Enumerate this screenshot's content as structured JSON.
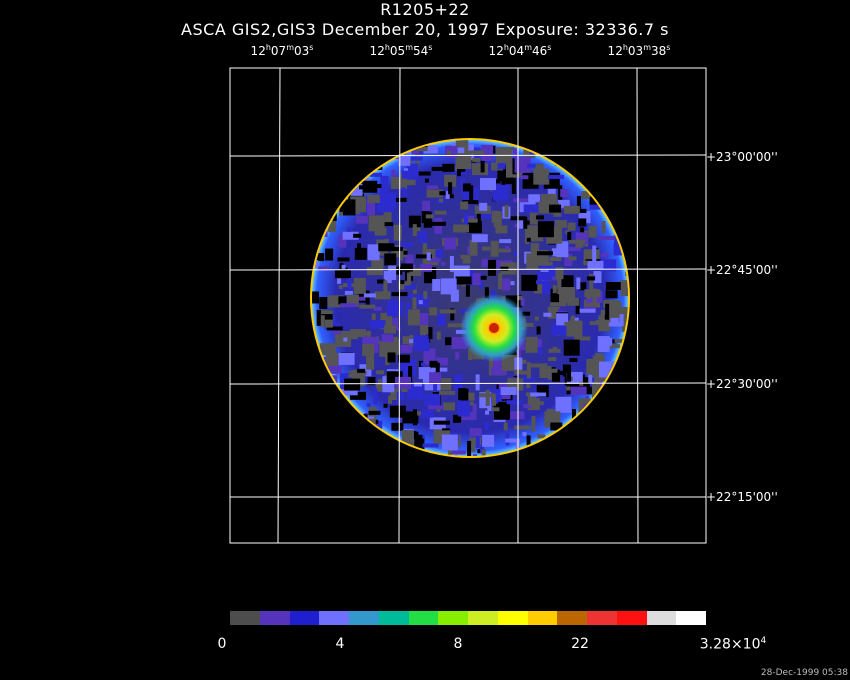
{
  "title": "R1205+22",
  "subtitle": "ASCA GIS2,GIS3 December 20, 1997 Exposure: 32336.7 s",
  "ra_ticks": [
    {
      "h": "12",
      "m": "07",
      "s": "03"
    },
    {
      "h": "12",
      "m": "05",
      "s": "54"
    },
    {
      "h": "12",
      "m": "04",
      "s": "46"
    },
    {
      "h": "12",
      "m": "03",
      "s": "38"
    }
  ],
  "dec_ticks": [
    "+23°00'00''",
    "+22°45'00''",
    "+22°30'00''",
    "+22°15'00''"
  ],
  "colorbar": {
    "colors": [
      "#4d4d4d",
      "#5533bb",
      "#1f1fd0",
      "#7070ff",
      "#3399cc",
      "#00bb99",
      "#22dd44",
      "#88ee00",
      "#ccee22",
      "#ffff00",
      "#ffcc00",
      "#bb6600",
      "#ee3333",
      "#ff1111",
      "#dddddd",
      "#ffffff"
    ],
    "labels": [
      {
        "text": "0"
      },
      {
        "text": "4"
      },
      {
        "text": "8"
      },
      {
        "text": "22"
      },
      {
        "text": "3.28×10",
        "sup": "4"
      }
    ]
  },
  "timestamp": "28-Dec-1999 05:38"
}
